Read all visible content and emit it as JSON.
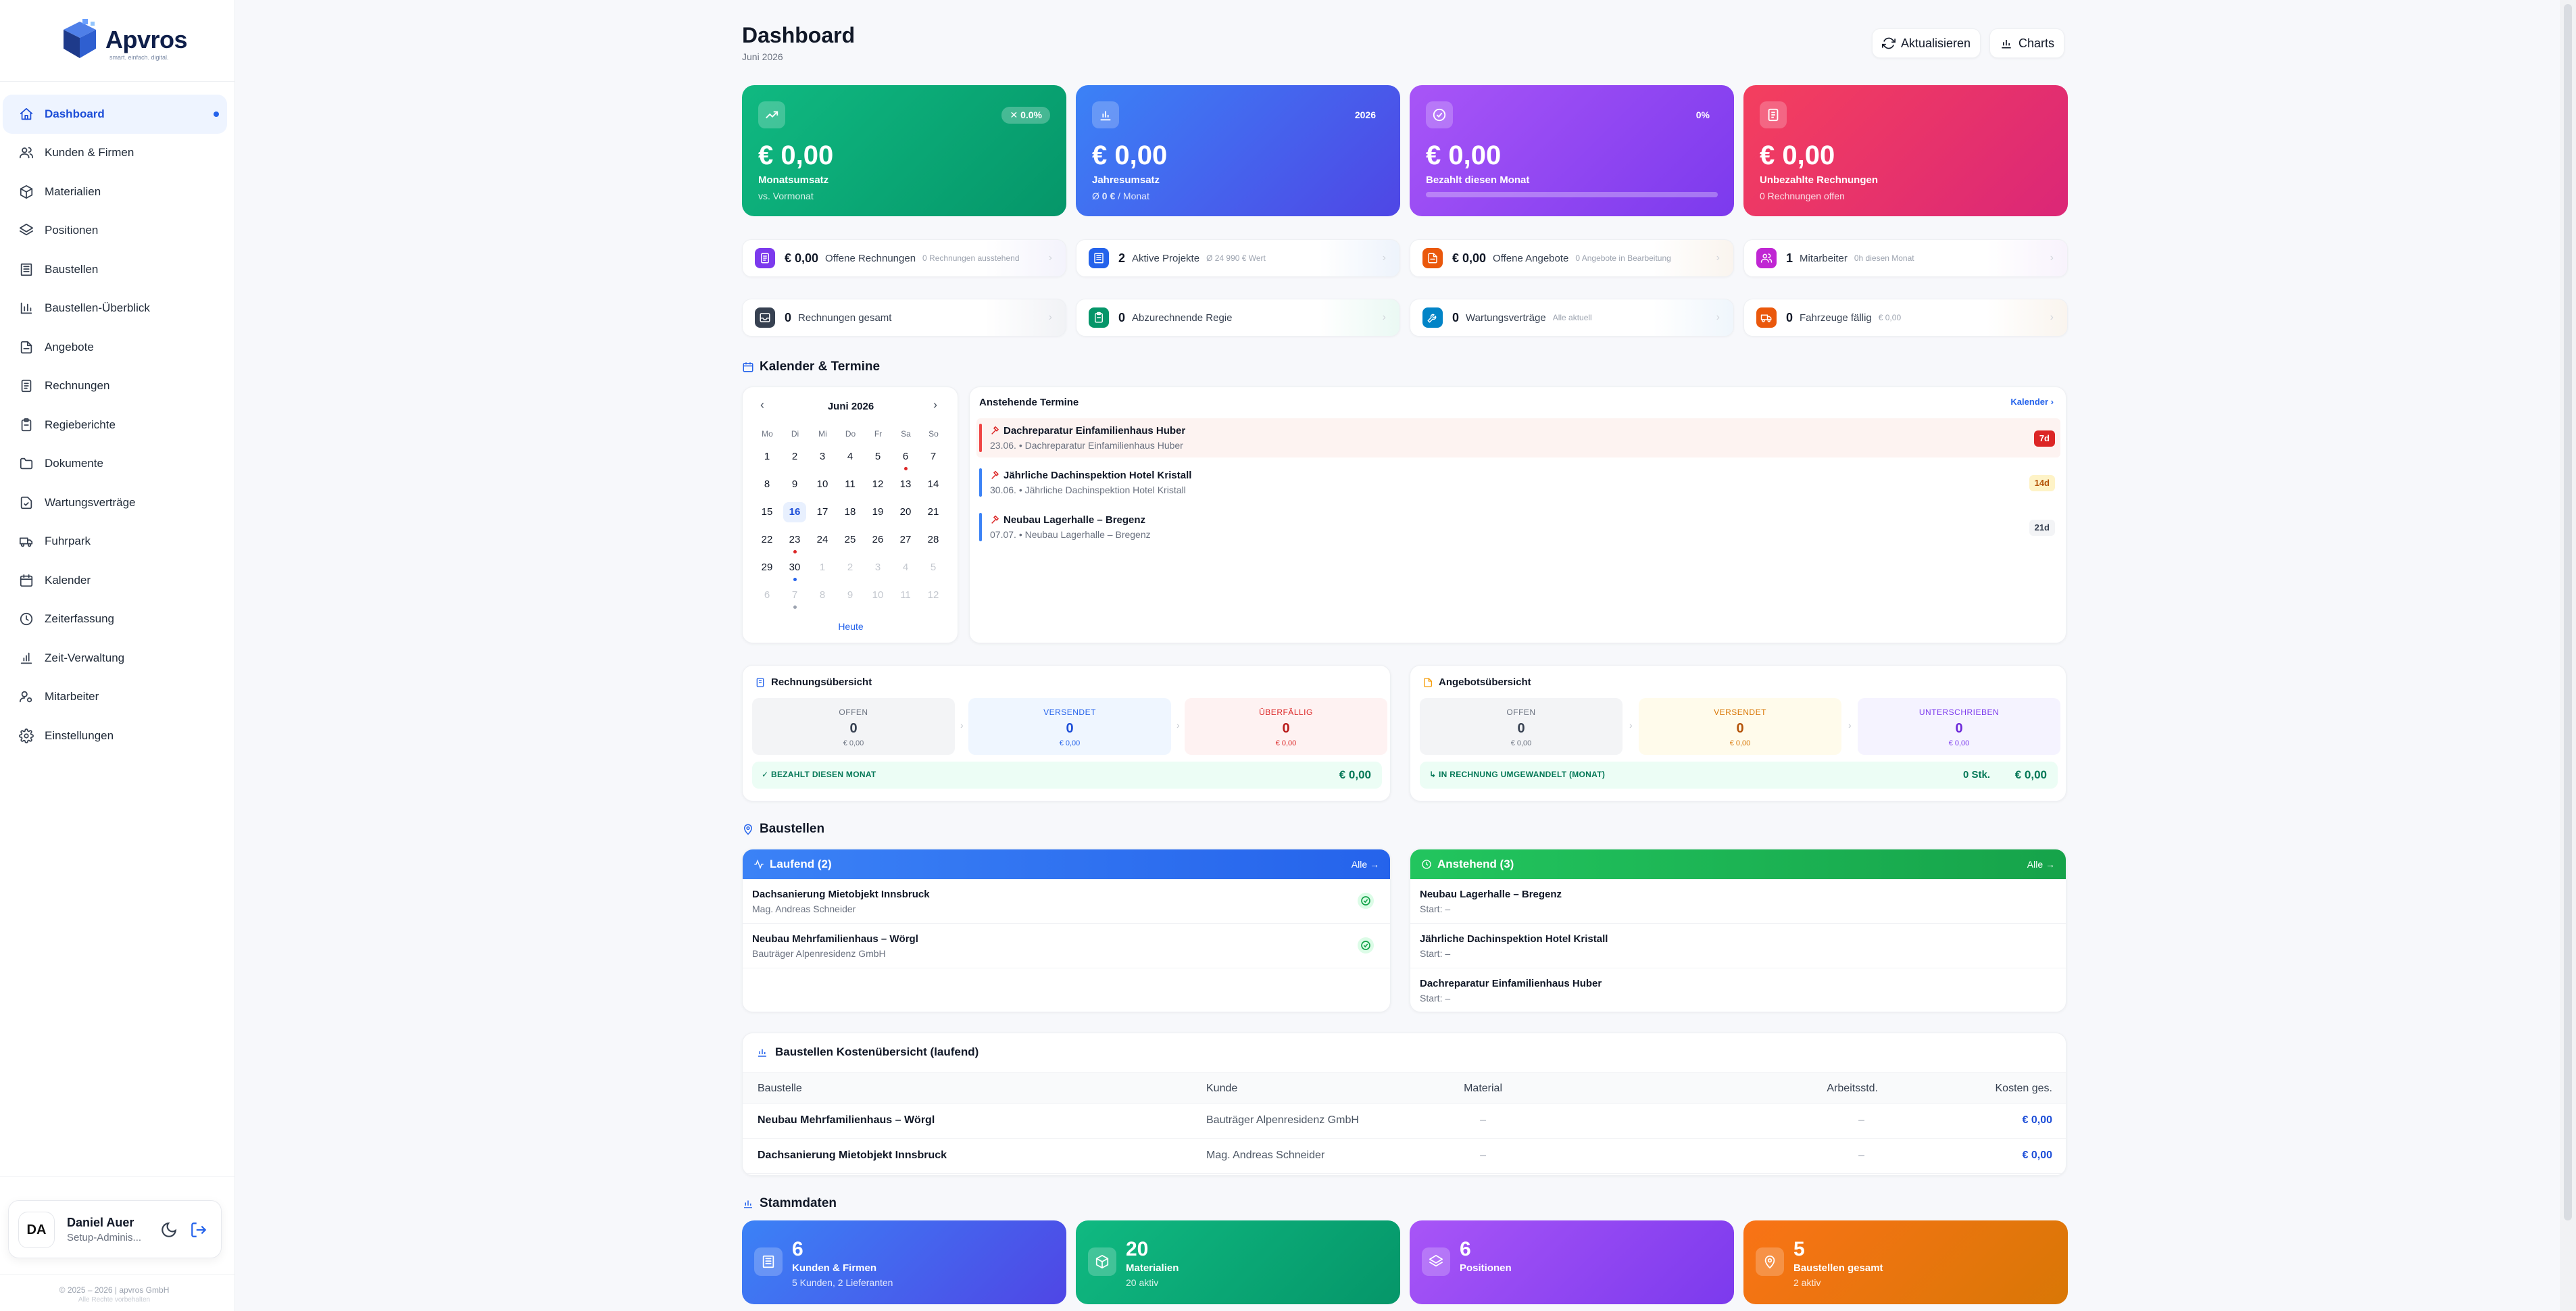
{
  "app": {
    "brand": "Apvros",
    "slogan": "smart. einfach. digital.",
    "copyright": "© 2025 – 2026 | apvros GmbH",
    "copyright_sub": "Alle Rechte vorbehalten"
  },
  "sidebar": {
    "items": [
      {
        "label": "Dashboard",
        "icon": "home-icon",
        "active": true
      },
      {
        "label": "Kunden & Firmen",
        "icon": "users-icon"
      },
      {
        "label": "Materialien",
        "icon": "package-icon"
      },
      {
        "label": "Positionen",
        "icon": "layers-icon"
      },
      {
        "label": "Baustellen",
        "icon": "building-icon"
      },
      {
        "label": "Baustellen-Überblick",
        "icon": "bar-chart-icon"
      },
      {
        "label": "Angebote",
        "icon": "file-text-icon"
      },
      {
        "label": "Rechnungen",
        "icon": "receipt-icon"
      },
      {
        "label": "Regieberichte",
        "icon": "clipboard-icon"
      },
      {
        "label": "Dokumente",
        "icon": "folder-icon"
      },
      {
        "label": "Wartungsverträge",
        "icon": "file-check-icon"
      },
      {
        "label": "Fuhrpark",
        "icon": "truck-icon"
      },
      {
        "label": "Kalender",
        "icon": "calendar-icon"
      },
      {
        "label": "Zeiterfassung",
        "icon": "clock-icon"
      },
      {
        "label": "Zeit-Verwaltung",
        "icon": "chart-icon"
      },
      {
        "label": "Mitarbeiter",
        "icon": "user-cog-icon"
      },
      {
        "label": "Einstellungen",
        "icon": "gear-icon"
      }
    ]
  },
  "user": {
    "initials": "DA",
    "name": "Daniel Auer",
    "role": "Setup-Adminis..."
  },
  "header": {
    "title": "Dashboard",
    "subtitle": "Juni 2026",
    "refresh_label": "Aktualisieren",
    "charts_label": "Charts"
  },
  "kpis": [
    {
      "value": "€ 0,00",
      "label": "Monatsumsatz",
      "sub": "vs. Vormonat",
      "badge": "✕ 0.0%"
    },
    {
      "value": "€ 0,00",
      "label": "Jahresumsatz",
      "sub_prefix": "Ø ",
      "sub_bold": "0 €",
      "sub_suffix": " / Monat",
      "badge": "2026"
    },
    {
      "value": "€ 0,00",
      "label": "Bezahlt diesen Monat",
      "badge": "0%",
      "progress": 0
    },
    {
      "value": "€ 0,00",
      "label": "Unbezahlte Rechnungen",
      "sub": "0 Rechnungen offen"
    }
  ],
  "tiles_row1": [
    {
      "value": "€ 0,00",
      "label": "Offene Rechnungen",
      "sub": "0 Rechnungen ausstehend",
      "color": "#7c3aed",
      "bg": "#ede9fe",
      "icon": "receipt-icon"
    },
    {
      "value": "2",
      "label": "Aktive Projekte",
      "sub": "Ø 24 990 € Wert",
      "color": "#2563eb",
      "bg": "#dbeafe",
      "icon": "building-icon"
    },
    {
      "value": "€ 0,00",
      "label": "Offene Angebote",
      "sub": "0 Angebote in Bearbeitung",
      "color": "#ea580c",
      "bg": "#ffedd5",
      "icon": "file-text-icon"
    },
    {
      "value": "1",
      "label": "Mitarbeiter",
      "sub": "0h diesen Monat",
      "color": "#c026d3",
      "bg": "#fae8ff",
      "icon": "users-icon"
    }
  ],
  "tiles_row2": [
    {
      "value": "0",
      "label": "Rechnungen gesamt",
      "sub": "",
      "color": "#374151",
      "bg": "#e5e7eb",
      "icon": "inbox-icon"
    },
    {
      "value": "0",
      "label": "Abzurechnende Regie",
      "sub": "",
      "color": "#059669",
      "bg": "#d1fae5",
      "icon": "clipboard-icon"
    },
    {
      "value": "0",
      "label": "Wartungsverträge",
      "sub": "Alle aktuell",
      "color": "#0284c7",
      "bg": "#e0f2fe",
      "icon": "wrench-icon"
    },
    {
      "value": "0",
      "label": "Fahrzeuge fällig",
      "sub": "€ 0,00",
      "color": "#ea580c",
      "bg": "#ffedd5",
      "icon": "truck-icon"
    }
  ],
  "calendar": {
    "section_title": "Kalender & Termine",
    "month": "Juni 2026",
    "weekdays": [
      "Mo",
      "Di",
      "Mi",
      "Do",
      "Fr",
      "Sa",
      "So"
    ],
    "weeks": [
      [
        "1",
        "2",
        "3",
        "4",
        "5",
        "6",
        "7"
      ],
      [
        "8",
        "9",
        "10",
        "11",
        "12",
        "13",
        "14"
      ],
      [
        "15",
        "16",
        "17",
        "18",
        "19",
        "20",
        "21"
      ],
      [
        "22",
        "23",
        "24",
        "25",
        "26",
        "27",
        "28"
      ],
      [
        "29",
        "30",
        "1",
        "2",
        "3",
        "4",
        "5"
      ],
      [
        "6",
        "7",
        "8",
        "9",
        "10",
        "11",
        "12"
      ]
    ],
    "today_label": "Heute"
  },
  "appointments": {
    "title": "Anstehende Termine",
    "link": "Kalender ›",
    "items": [
      {
        "title": "Dachreparatur Einfamilienhaus Huber",
        "sub": "23.06. • Dachreparatur Einfamilienhaus Huber",
        "badge": "7d",
        "bar": "#ef4444",
        "bg": "#fdf3f1",
        "badge_bg": "#dc2626",
        "badge_fg": "#ffffff"
      },
      {
        "title": "Jährliche Dachinspektion Hotel Kristall",
        "sub": "30.06. • Jährliche Dachinspektion Hotel Kristall",
        "badge": "14d",
        "bar": "#3b82f6",
        "bg": "#ffffff",
        "badge_bg": "#fef3c7",
        "badge_fg": "#b45309"
      },
      {
        "title": "Neubau Lagerhalle – Bregenz",
        "sub": "07.07. • Neubau Lagerhalle – Bregenz",
        "badge": "21d",
        "bar": "#3b82f6",
        "bg": "#ffffff",
        "badge_bg": "#f3f4f6",
        "badge_fg": "#374151"
      }
    ]
  },
  "invoice_overview": {
    "title": "Rechnungsübersicht",
    "boxes": [
      {
        "label": "OFFEN",
        "value": "0",
        "amount": "€ 0,00"
      },
      {
        "label": "VERSENDET",
        "value": "0",
        "amount": "€ 0,00"
      },
      {
        "label": "ÜBERFÄLLIG",
        "value": "0",
        "amount": "€ 0,00"
      }
    ],
    "footer_label": "✓ BEZAHLT DIESEN MONAT",
    "footer_value": "€ 0,00"
  },
  "offer_overview": {
    "title": "Angebotsübersicht",
    "boxes": [
      {
        "label": "OFFEN",
        "value": "0",
        "amount": "€ 0,00"
      },
      {
        "label": "VERSENDET",
        "value": "0",
        "amount": "€ 0,00"
      },
      {
        "label": "UNTERSCHRIEBEN",
        "value": "0",
        "amount": "€ 0,00"
      }
    ],
    "footer_label": "↳ IN RECHNUNG UMGEWANDELT (MONAT)",
    "footer_count": "0 Stk.",
    "footer_value": "€ 0,00"
  },
  "baustellen": {
    "section_title": "Baustellen",
    "running": {
      "title": "Laufend (2)",
      "link": "Alle →",
      "items": [
        {
          "title": "Dachsanierung Mietobjekt Innsbruck",
          "sub": "Mag. Andreas Schneider"
        },
        {
          "title": "Neubau Mehrfamilienhaus – Wörgl",
          "sub": "Bauträger Alpenresidenz GmbH"
        }
      ]
    },
    "upcoming": {
      "title": "Anstehend (3)",
      "link": "Alle →",
      "items": [
        {
          "title": "Neubau Lagerhalle – Bregenz",
          "sub": "Start: –"
        },
        {
          "title": "Jährliche Dachinspektion Hotel Kristall",
          "sub": "Start: –"
        },
        {
          "title": "Dachreparatur Einfamilienhaus Huber",
          "sub": "Start: –"
        }
      ]
    }
  },
  "costs": {
    "title": "Baustellen Kostenübersicht (laufend)",
    "columns": [
      "Baustelle",
      "Kunde",
      "Material",
      "Arbeitsstd.",
      "Kosten ges."
    ],
    "rows": [
      [
        "Neubau Mehrfamilienhaus – Wörgl",
        "Bauträger Alpenresidenz GmbH",
        "–",
        "–",
        "€ 0,00"
      ],
      [
        "Dachsanierung Mietobjekt Innsbruck",
        "Mag. Andreas Schneider",
        "–",
        "–",
        "€ 0,00"
      ]
    ]
  },
  "stammdaten": {
    "section_title": "Stammdaten",
    "cards": [
      {
        "value": "6",
        "label": "Kunden & Firmen",
        "sub": "5 Kunden, 2 Lieferanten",
        "icon": "building-icon"
      },
      {
        "value": "20",
        "label": "Materialien",
        "sub": "20 aktiv",
        "icon": "package-icon"
      },
      {
        "value": "6",
        "label": "Positionen",
        "sub": "",
        "icon": "layers-icon"
      },
      {
        "value": "5",
        "label": "Baustellen gesamt",
        "sub": "2 aktiv",
        "icon": "map-pin-icon"
      }
    ]
  }
}
